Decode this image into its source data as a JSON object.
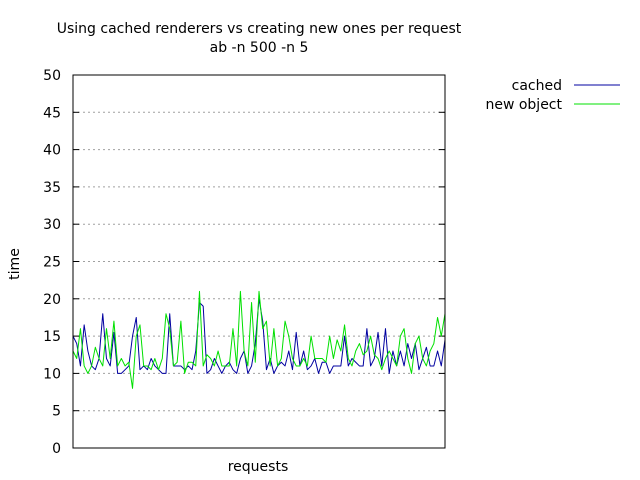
{
  "chart_data": {
    "type": "line",
    "title": "Using cached renderers vs creating new ones per request",
    "subtitle": "ab -n 500 -n 5",
    "xlabel": "requests",
    "ylabel": "time",
    "ylim": [
      0,
      50
    ],
    "yticks": [
      0,
      5,
      10,
      15,
      20,
      25,
      30,
      35,
      40,
      45,
      50
    ],
    "xlim": [
      0,
      100
    ],
    "grid": true,
    "legend": "top-right",
    "series": [
      {
        "name": "cached",
        "color": "#0000a0",
        "x": [
          0,
          1,
          2,
          3,
          4,
          5,
          6,
          7,
          8,
          9,
          10,
          11,
          12,
          13,
          14,
          15,
          16,
          17,
          18,
          19,
          20,
          21,
          22,
          23,
          24,
          25,
          26,
          27,
          28,
          29,
          30,
          31,
          32,
          33,
          34,
          35,
          36,
          37,
          38,
          39,
          40,
          41,
          42,
          43,
          44,
          45,
          46,
          47,
          48,
          49,
          50,
          51,
          52,
          53,
          54,
          55,
          56,
          57,
          58,
          59,
          60,
          61,
          62,
          63,
          64,
          65,
          66,
          67,
          68,
          69,
          70,
          71,
          72,
          73,
          74,
          75,
          76,
          77,
          78,
          79,
          80,
          81,
          82,
          83,
          84,
          85,
          86,
          87,
          88,
          89,
          90,
          91,
          92,
          93,
          94,
          95,
          96,
          97,
          98,
          99,
          100
        ],
        "values": [
          15,
          14,
          11,
          16.5,
          13,
          11,
          10.5,
          12,
          18,
          12,
          11,
          15.5,
          10,
          10,
          10.5,
          11,
          15,
          17.5,
          10.5,
          11,
          10.5,
          12,
          11,
          10.5,
          10,
          10,
          18,
          11,
          11,
          11,
          10.5,
          11,
          10.5,
          13,
          19.5,
          19,
          10,
          10.5,
          12,
          11,
          10,
          11,
          11.5,
          10.5,
          10,
          12,
          13,
          10,
          11,
          14,
          20,
          17,
          10.5,
          12,
          10,
          11,
          11.5,
          11,
          13,
          10.5,
          15.5,
          11,
          13,
          10.5,
          11,
          12,
          10,
          11.5,
          11.5,
          10,
          11,
          11,
          11,
          15,
          11,
          12,
          11.5,
          11,
          11,
          16,
          11,
          12,
          15.5,
          11,
          16,
          10,
          13,
          11,
          13,
          11,
          14,
          12,
          14,
          10.5,
          12,
          13.5,
          11,
          11,
          13,
          11,
          14.5
        ]
      },
      {
        "name": "new object",
        "color": "#00e000",
        "x": [
          0,
          1,
          2,
          3,
          4,
          5,
          6,
          7,
          8,
          9,
          10,
          11,
          12,
          13,
          14,
          15,
          16,
          17,
          18,
          19,
          20,
          21,
          22,
          23,
          24,
          25,
          26,
          27,
          28,
          29,
          30,
          31,
          32,
          33,
          34,
          35,
          36,
          37,
          38,
          39,
          40,
          41,
          42,
          43,
          44,
          45,
          46,
          47,
          48,
          49,
          50,
          51,
          52,
          53,
          54,
          55,
          56,
          57,
          58,
          59,
          60,
          61,
          62,
          63,
          64,
          65,
          66,
          67,
          68,
          69,
          70,
          71,
          72,
          73,
          74,
          75,
          76,
          77,
          78,
          79,
          80,
          81,
          82,
          83,
          84,
          85,
          86,
          87,
          88,
          89,
          90,
          91,
          92,
          93,
          94,
          95,
          96,
          97,
          98,
          99,
          100
        ],
        "values": [
          13,
          12,
          16,
          11,
          10,
          11,
          13.5,
          12,
          11,
          16,
          12,
          17,
          11,
          12,
          11,
          11.5,
          8,
          15,
          16.5,
          11,
          11,
          10.5,
          12,
          10.5,
          12,
          18,
          16,
          11,
          11.5,
          17,
          10,
          11.5,
          11.5,
          11,
          21,
          11,
          12.5,
          12,
          11,
          13,
          11,
          11,
          11,
          16,
          11,
          21,
          13,
          11,
          19.5,
          11.5,
          21,
          16,
          17,
          11,
          16,
          11,
          12,
          17,
          15,
          12,
          11,
          11,
          12,
          11,
          15,
          12,
          12,
          12,
          11.5,
          15,
          12,
          14.5,
          13,
          16.5,
          12,
          11,
          13,
          14,
          12.5,
          13,
          15,
          12.5,
          12,
          10.5,
          12,
          13,
          12,
          11,
          15,
          16,
          12,
          10,
          14,
          15,
          12,
          11,
          13,
          14,
          17.5,
          15,
          18
        ]
      }
    ]
  }
}
